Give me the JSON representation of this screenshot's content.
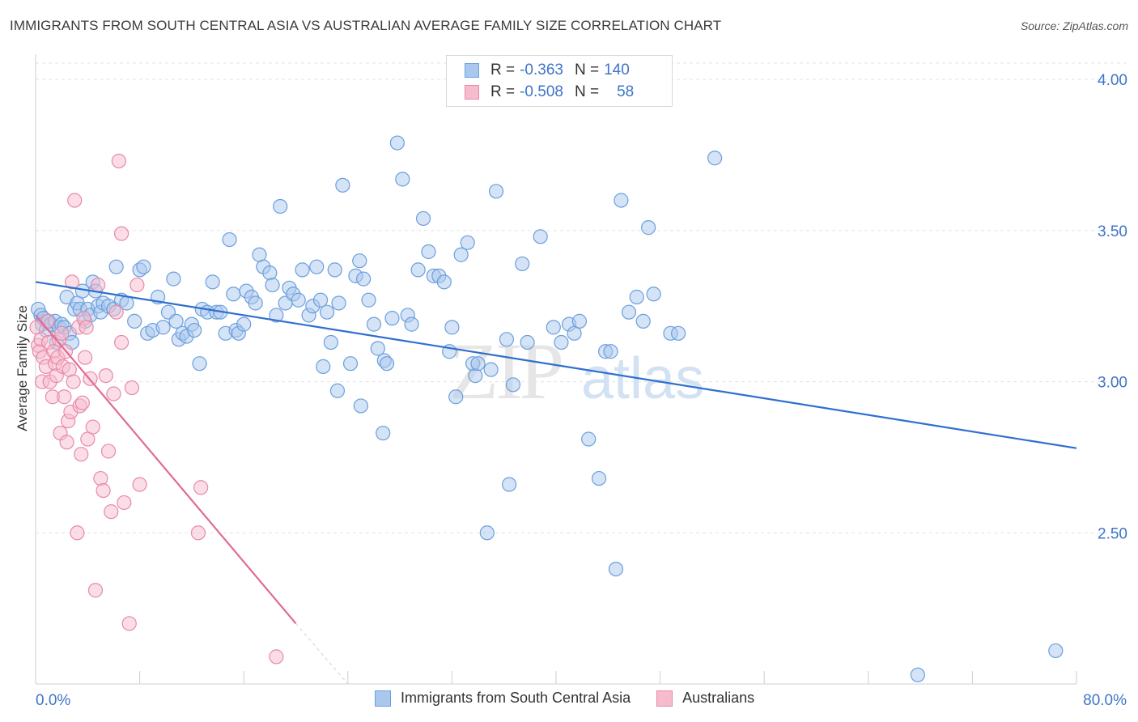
{
  "title": "IMMIGRANTS FROM SOUTH CENTRAL ASIA VS AUSTRALIAN AVERAGE FAMILY SIZE CORRELATION CHART",
  "source": "Source: ZipAtlas.com",
  "watermark": {
    "zip": "ZIP",
    "atlas": "atlas"
  },
  "legend": {
    "rows": [
      {
        "r_label": "R =",
        "r_value": "-0.363",
        "n_label": "N =",
        "n_value": "140"
      },
      {
        "r_label": "R =",
        "r_value": "-0.508",
        "n_label": "N =",
        "n_value": "58"
      }
    ]
  },
  "bottom_legend": {
    "series1": "Immigrants from South Central Asia",
    "series2": "Australians"
  },
  "colors": {
    "blue_fill": "#aac8ee",
    "blue_stroke": "#6b9fdd",
    "blue_line": "#2f6fcf",
    "pink_fill": "#f6bccd",
    "pink_stroke": "#e88aa8",
    "pink_line": "#e06b94",
    "tick_text": "#3f74c9",
    "grid": "#e3e3e3"
  },
  "chart_data": {
    "type": "scatter",
    "xlabel": "",
    "ylabel": "Average Family Size",
    "xlim": [
      0,
      80
    ],
    "ylim": [
      2.0,
      4.07
    ],
    "x_tick_labels": [
      {
        "value": 0,
        "label": "0.0%"
      },
      {
        "value": 80,
        "label": "80.0%"
      }
    ],
    "y_ticks": [
      {
        "value": 2.5,
        "label": "2.50"
      },
      {
        "value": 3.0,
        "label": "3.00"
      },
      {
        "value": 3.5,
        "label": "3.50"
      },
      {
        "value": 4.0,
        "label": "4.00"
      }
    ],
    "grid": true,
    "series": [
      {
        "name": "Immigrants from South Central Asia",
        "color": "blue",
        "trend": {
          "x": [
            0,
            80
          ],
          "y": [
            3.33,
            2.78
          ]
        },
        "points": [
          [
            0.2,
            3.24
          ],
          [
            0.4,
            3.22
          ],
          [
            0.5,
            3.19
          ],
          [
            0.6,
            3.21
          ],
          [
            0.8,
            3.17
          ],
          [
            1.0,
            3.2
          ],
          [
            1.2,
            3.19
          ],
          [
            1.5,
            3.2
          ],
          [
            1.6,
            3.13
          ],
          [
            1.8,
            3.18
          ],
          [
            2.0,
            3.19
          ],
          [
            2.2,
            3.18
          ],
          [
            2.4,
            3.28
          ],
          [
            2.6,
            3.16
          ],
          [
            2.8,
            3.13
          ],
          [
            3.0,
            3.24
          ],
          [
            3.2,
            3.26
          ],
          [
            3.4,
            3.24
          ],
          [
            3.6,
            3.3
          ],
          [
            3.8,
            3.2
          ],
          [
            4.0,
            3.24
          ],
          [
            4.2,
            3.22
          ],
          [
            4.4,
            3.33
          ],
          [
            4.6,
            3.3
          ],
          [
            4.8,
            3.25
          ],
          [
            5.0,
            3.23
          ],
          [
            5.2,
            3.26
          ],
          [
            5.6,
            3.25
          ],
          [
            6.0,
            3.24
          ],
          [
            6.2,
            3.38
          ],
          [
            6.6,
            3.27
          ],
          [
            7.0,
            3.26
          ],
          [
            7.6,
            3.2
          ],
          [
            8.0,
            3.37
          ],
          [
            8.3,
            3.38
          ],
          [
            8.6,
            3.16
          ],
          [
            9.0,
            3.17
          ],
          [
            9.4,
            3.28
          ],
          [
            9.8,
            3.18
          ],
          [
            10.2,
            3.23
          ],
          [
            10.6,
            3.34
          ],
          [
            10.8,
            3.2
          ],
          [
            11.0,
            3.14
          ],
          [
            11.3,
            3.16
          ],
          [
            11.6,
            3.15
          ],
          [
            12.0,
            3.19
          ],
          [
            12.2,
            3.17
          ],
          [
            12.6,
            3.06
          ],
          [
            12.8,
            3.24
          ],
          [
            13.2,
            3.23
          ],
          [
            13.6,
            3.33
          ],
          [
            13.9,
            3.23
          ],
          [
            14.2,
            3.23
          ],
          [
            14.6,
            3.16
          ],
          [
            14.9,
            3.47
          ],
          [
            15.2,
            3.29
          ],
          [
            15.4,
            3.17
          ],
          [
            15.6,
            3.16
          ],
          [
            16.0,
            3.19
          ],
          [
            16.2,
            3.3
          ],
          [
            16.6,
            3.28
          ],
          [
            16.9,
            3.26
          ],
          [
            17.2,
            3.42
          ],
          [
            17.5,
            3.38
          ],
          [
            18.0,
            3.36
          ],
          [
            18.2,
            3.32
          ],
          [
            18.5,
            3.22
          ],
          [
            18.8,
            3.58
          ],
          [
            19.2,
            3.26
          ],
          [
            19.5,
            3.31
          ],
          [
            19.8,
            3.29
          ],
          [
            20.2,
            3.27
          ],
          [
            20.5,
            3.37
          ],
          [
            21.0,
            3.22
          ],
          [
            21.3,
            3.25
          ],
          [
            21.6,
            3.38
          ],
          [
            21.9,
            3.27
          ],
          [
            22.1,
            3.05
          ],
          [
            22.4,
            3.23
          ],
          [
            22.7,
            3.13
          ],
          [
            23.0,
            3.37
          ],
          [
            23.3,
            3.26
          ],
          [
            23.6,
            3.65
          ],
          [
            24.2,
            3.06
          ],
          [
            24.6,
            3.35
          ],
          [
            24.9,
            3.4
          ],
          [
            25.2,
            3.34
          ],
          [
            25.6,
            3.27
          ],
          [
            26.0,
            3.19
          ],
          [
            26.3,
            3.11
          ],
          [
            26.8,
            3.07
          ],
          [
            27.0,
            3.06
          ],
          [
            27.4,
            3.21
          ],
          [
            27.8,
            3.79
          ],
          [
            28.2,
            3.67
          ],
          [
            28.6,
            3.22
          ],
          [
            28.9,
            3.19
          ],
          [
            29.4,
            3.37
          ],
          [
            29.8,
            3.54
          ],
          [
            30.2,
            3.43
          ],
          [
            30.6,
            3.35
          ],
          [
            31.0,
            3.35
          ],
          [
            31.4,
            3.33
          ],
          [
            31.8,
            3.1
          ],
          [
            32.0,
            3.18
          ],
          [
            32.3,
            2.95
          ],
          [
            32.7,
            3.42
          ],
          [
            33.2,
            3.46
          ],
          [
            33.6,
            3.06
          ],
          [
            33.8,
            3.02
          ],
          [
            34.0,
            3.06
          ],
          [
            35.0,
            3.04
          ],
          [
            35.4,
            3.63
          ],
          [
            36.4,
            2.66
          ],
          [
            36.7,
            2.99
          ],
          [
            37.4,
            3.39
          ],
          [
            37.8,
            3.13
          ],
          [
            38.8,
            3.48
          ],
          [
            39.8,
            3.18
          ],
          [
            40.4,
            3.13
          ],
          [
            41.0,
            3.19
          ],
          [
            41.4,
            3.16
          ],
          [
            41.8,
            3.2
          ],
          [
            42.5,
            2.81
          ],
          [
            43.8,
            3.1
          ],
          [
            44.2,
            3.1
          ],
          [
            45.0,
            3.6
          ],
          [
            45.6,
            3.23
          ],
          [
            46.2,
            3.28
          ],
          [
            46.7,
            3.2
          ],
          [
            47.1,
            3.51
          ],
          [
            47.5,
            3.29
          ],
          [
            48.8,
            3.16
          ],
          [
            49.4,
            3.16
          ],
          [
            52.2,
            3.74
          ],
          [
            34.7,
            2.5
          ],
          [
            36.2,
            3.14
          ],
          [
            44.6,
            2.38
          ],
          [
            23.2,
            2.97
          ],
          [
            25.0,
            2.92
          ],
          [
            26.7,
            2.83
          ],
          [
            43.3,
            2.68
          ],
          [
            78.4,
            2.11
          ],
          [
            67.8,
            2.03
          ]
        ]
      },
      {
        "name": "Australians",
        "color": "pink",
        "trend": {
          "x": [
            0,
            20.0
          ],
          "y": [
            3.22,
            2.2
          ]
        },
        "trend_dashed": {
          "x": [
            20.0,
            24.0
          ],
          "y": [
            2.2,
            2.0
          ]
        },
        "points": [
          [
            0.1,
            3.18
          ],
          [
            0.2,
            3.12
          ],
          [
            0.3,
            3.1
          ],
          [
            0.4,
            3.14
          ],
          [
            0.5,
            3.0
          ],
          [
            0.6,
            3.08
          ],
          [
            0.8,
            3.05
          ],
          [
            0.9,
            3.2
          ],
          [
            1.0,
            3.13
          ],
          [
            1.1,
            3.0
          ],
          [
            1.3,
            2.95
          ],
          [
            1.4,
            3.1
          ],
          [
            1.5,
            3.06
          ],
          [
            1.6,
            3.02
          ],
          [
            1.7,
            3.08
          ],
          [
            1.8,
            3.14
          ],
          [
            1.9,
            2.83
          ],
          [
            2.0,
            3.16
          ],
          [
            2.1,
            3.05
          ],
          [
            2.2,
            2.95
          ],
          [
            2.3,
            3.1
          ],
          [
            2.4,
            2.8
          ],
          [
            2.5,
            2.87
          ],
          [
            2.6,
            3.04
          ],
          [
            2.7,
            2.9
          ],
          [
            2.8,
            3.33
          ],
          [
            2.9,
            3.0
          ],
          [
            3.0,
            3.6
          ],
          [
            3.2,
            2.5
          ],
          [
            3.3,
            3.18
          ],
          [
            3.4,
            2.92
          ],
          [
            3.5,
            2.76
          ],
          [
            3.6,
            2.93
          ],
          [
            3.7,
            3.21
          ],
          [
            3.8,
            3.08
          ],
          [
            3.9,
            3.18
          ],
          [
            4.0,
            2.81
          ],
          [
            4.2,
            3.01
          ],
          [
            4.4,
            2.85
          ],
          [
            4.6,
            2.31
          ],
          [
            4.8,
            3.32
          ],
          [
            5.0,
            2.68
          ],
          [
            5.2,
            2.64
          ],
          [
            5.4,
            3.02
          ],
          [
            5.6,
            2.77
          ],
          [
            5.8,
            2.57
          ],
          [
            6.0,
            2.96
          ],
          [
            6.2,
            3.23
          ],
          [
            6.4,
            3.73
          ],
          [
            6.6,
            3.49
          ],
          [
            6.8,
            2.6
          ],
          [
            6.6,
            3.13
          ],
          [
            7.2,
            2.2
          ],
          [
            7.4,
            2.98
          ],
          [
            7.8,
            3.32
          ],
          [
            8.0,
            2.66
          ],
          [
            12.5,
            2.5
          ],
          [
            12.7,
            2.65
          ],
          [
            18.5,
            2.09
          ]
        ]
      }
    ]
  }
}
